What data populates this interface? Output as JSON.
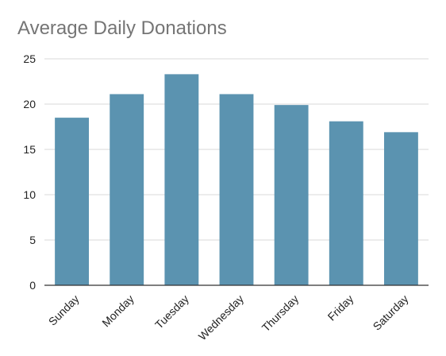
{
  "chart_data": {
    "type": "bar",
    "title": "Average Daily Donations",
    "xlabel": "",
    "ylabel": "",
    "categories": [
      "Sunday",
      "Monday",
      "Tuesday",
      "Wednesday",
      "Thursday",
      "Friday",
      "Saturday"
    ],
    "values": [
      18.5,
      21.1,
      23.3,
      21.1,
      19.9,
      18.1,
      16.9
    ],
    "ylim": [
      0,
      25
    ],
    "yticks": [
      0,
      5,
      10,
      15,
      20,
      25
    ],
    "grid": true,
    "legend": "none",
    "colors": {
      "bar": "#5b93b0",
      "grid": "#d9d9d9",
      "axis": "#333333",
      "title": "#757575"
    }
  }
}
